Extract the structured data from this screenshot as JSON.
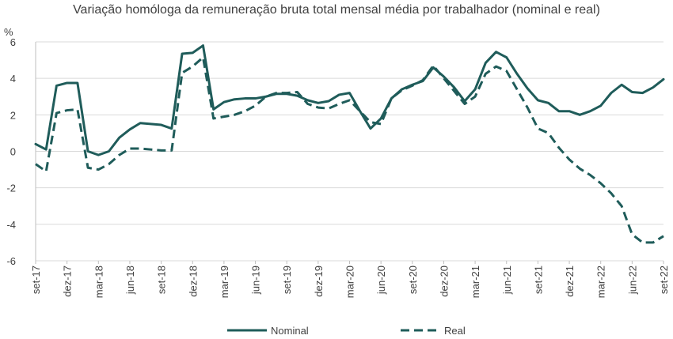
{
  "chart_data": {
    "type": "line",
    "title": "Variação homóloga da remuneração bruta total mensal média por trabalhador (nominal e real)",
    "ylabel": "%",
    "xlabel": "",
    "ylim": [
      -6,
      6
    ],
    "yticks": [
      "6",
      "4",
      "2",
      "0",
      "-2",
      "-4",
      "-6"
    ],
    "grid": true,
    "legend": "bottom",
    "colors": {
      "line": "#1f5c5a",
      "grid": "#d9d9d9",
      "axis": "#bfbfbf"
    },
    "x_tick_labels": [
      "set-17",
      "dez-17",
      "mar-18",
      "jun-18",
      "set-18",
      "dez-18",
      "mar-19",
      "jun-19",
      "set-19",
      "dez-19",
      "mar-20",
      "jun-20",
      "set-20",
      "dez-20",
      "mar-21",
      "jun-21",
      "set-21",
      "dez-21",
      "mar-22",
      "jun-22",
      "set-22"
    ],
    "x": [
      "set-17",
      "out-17",
      "nov-17",
      "dez-17",
      "jan-18",
      "fev-18",
      "mar-18",
      "abr-18",
      "mai-18",
      "jun-18",
      "jul-18",
      "ago-18",
      "set-18",
      "out-18",
      "nov-18",
      "dez-18",
      "jan-19",
      "fev-19",
      "mar-19",
      "abr-19",
      "mai-19",
      "jun-19",
      "jul-19",
      "ago-19",
      "set-19",
      "out-19",
      "nov-19",
      "dez-19",
      "jan-20",
      "fev-20",
      "mar-20",
      "abr-20",
      "mai-20",
      "jun-20",
      "jul-20",
      "ago-20",
      "set-20",
      "out-20",
      "nov-20",
      "dez-20",
      "jan-21",
      "fev-21",
      "mar-21",
      "abr-21",
      "mai-21",
      "jun-21",
      "jul-21",
      "ago-21",
      "set-21",
      "out-21",
      "nov-21",
      "dez-21",
      "jan-22",
      "fev-22",
      "mar-22",
      "abr-22",
      "mai-22",
      "jun-22",
      "jul-22",
      "ago-22",
      "set-22"
    ],
    "series": [
      {
        "name": "Nominal",
        "style": "solid",
        "values": [
          0.4,
          0.1,
          3.6,
          3.75,
          3.75,
          0.0,
          -0.2,
          0.0,
          0.75,
          1.2,
          1.55,
          1.5,
          1.45,
          1.25,
          5.35,
          5.4,
          5.8,
          2.3,
          2.7,
          2.85,
          2.9,
          2.9,
          3.0,
          3.15,
          3.15,
          3.05,
          2.8,
          2.65,
          2.75,
          3.1,
          3.2,
          2.2,
          1.25,
          1.8,
          2.9,
          3.4,
          3.65,
          3.85,
          4.6,
          4.1,
          3.5,
          2.75,
          3.4,
          4.85,
          5.45,
          5.15,
          4.25,
          3.45,
          2.8,
          2.65,
          2.2,
          2.2,
          2.0,
          2.2,
          2.5,
          3.2,
          3.65,
          3.25,
          3.2,
          3.5,
          3.95
        ]
      },
      {
        "name": "Real",
        "style": "dashed",
        "values": [
          -0.7,
          -1.1,
          2.1,
          2.25,
          2.3,
          -0.9,
          -1.0,
          -0.7,
          -0.2,
          0.15,
          0.15,
          0.1,
          0.05,
          0.05,
          4.3,
          4.65,
          5.15,
          1.8,
          1.9,
          2.0,
          2.2,
          2.5,
          3.0,
          3.2,
          3.2,
          3.25,
          2.6,
          2.4,
          2.35,
          2.6,
          2.8,
          2.2,
          1.6,
          1.5,
          2.9,
          3.35,
          3.6,
          3.9,
          4.7,
          4.0,
          3.3,
          2.6,
          3.0,
          4.25,
          4.65,
          4.4,
          3.4,
          2.4,
          1.25,
          1.0,
          0.2,
          -0.45,
          -0.95,
          -1.3,
          -1.75,
          -2.3,
          -3.0,
          -4.55,
          -5.0,
          -5.0,
          -4.65
        ]
      }
    ]
  }
}
